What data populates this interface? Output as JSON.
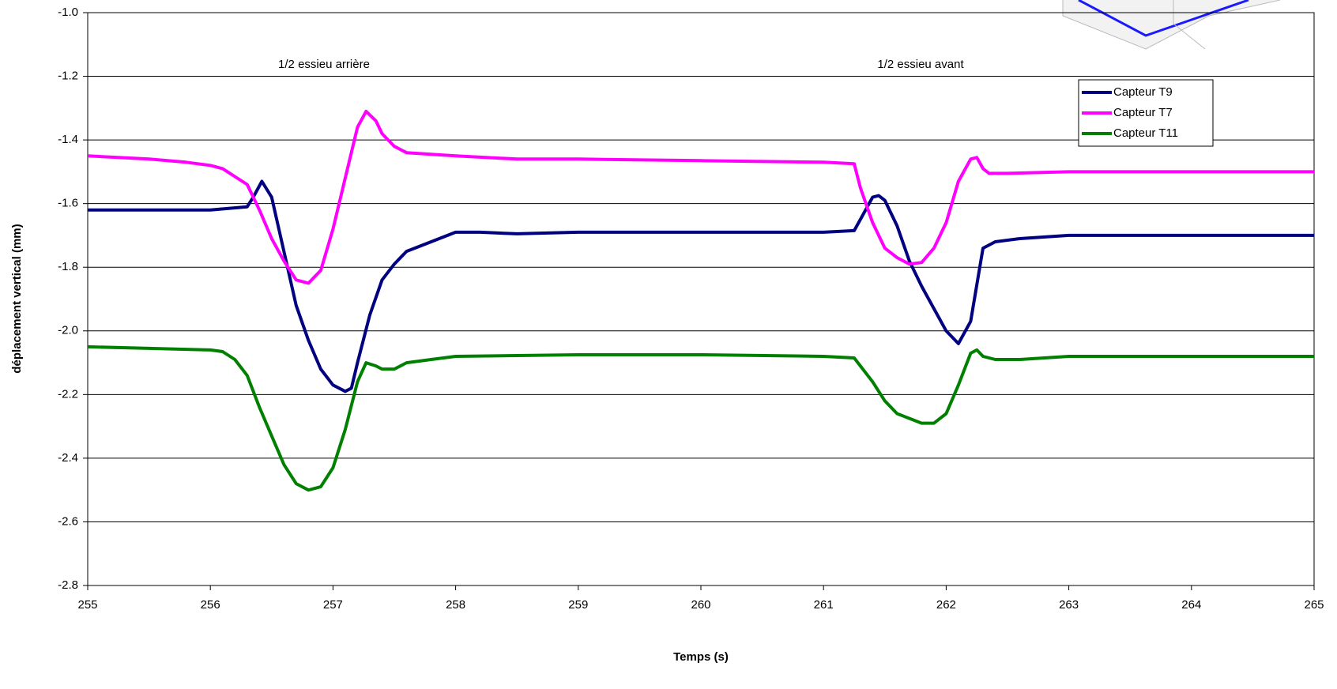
{
  "chart_data": {
    "type": "line",
    "xlabel": "Temps (s)",
    "ylabel": "déplacement vertical (mm)",
    "annotations": [
      "1/2 essieu arrière",
      "1/2 essieu avant"
    ],
    "xlim": [
      255,
      265
    ],
    "xticks": [
      255,
      256,
      257,
      258,
      259,
      260,
      261,
      262,
      263,
      264,
      265
    ],
    "ylim": [
      -2.8,
      -1.0
    ],
    "yticks": [
      {
        "value": -2.8,
        "label": "-2.8"
      },
      -2.6,
      -2.4,
      -2.2,
      {
        "value": -2.0,
        "label": "-2.0"
      },
      -1.8,
      -1.6,
      -1.4,
      -1.2,
      {
        "value": -1.0,
        "label": "-1.0"
      }
    ],
    "grid": true,
    "legend": "upper right",
    "series": [
      {
        "name": "Capteur T9",
        "color": "#000080",
        "x": [
          255,
          255.5,
          256,
          256.3,
          256.35,
          256.42,
          256.5,
          256.6,
          256.7,
          256.8,
          256.9,
          257.0,
          257.1,
          257.15,
          257.2,
          257.3,
          257.4,
          257.5,
          257.6,
          257.8,
          258.0,
          258.2,
          258.5,
          259,
          260,
          261,
          261.25,
          261.3,
          261.4,
          261.45,
          261.5,
          261.6,
          261.7,
          261.8,
          261.9,
          262.0,
          262.1,
          262.2,
          262.3,
          262.4,
          262.6,
          263,
          264,
          265
        ],
        "values": [
          -1.62,
          -1.62,
          -1.62,
          -1.61,
          -1.58,
          -1.53,
          -1.58,
          -1.75,
          -1.92,
          -2.03,
          -2.12,
          -2.17,
          -2.19,
          -2.18,
          -2.1,
          -1.95,
          -1.84,
          -1.79,
          -1.75,
          -1.72,
          -1.69,
          -1.69,
          -1.695,
          -1.69,
          -1.69,
          -1.69,
          -1.685,
          -1.65,
          -1.58,
          -1.575,
          -1.59,
          -1.67,
          -1.78,
          -1.86,
          -1.93,
          -2.0,
          -2.04,
          -1.97,
          -1.74,
          -1.72,
          -1.71,
          -1.7,
          -1.7,
          -1.7
        ]
      },
      {
        "name": "Capteur T7",
        "color": "#ff00ff",
        "x": [
          255,
          255.5,
          255.8,
          256,
          256.1,
          256.3,
          256.4,
          256.5,
          256.6,
          256.7,
          256.8,
          256.9,
          257.0,
          257.1,
          257.2,
          257.27,
          257.35,
          257.4,
          257.5,
          257.6,
          258,
          258.5,
          259,
          260,
          261,
          261.25,
          261.3,
          261.4,
          261.5,
          261.6,
          261.7,
          261.8,
          261.9,
          262.0,
          262.1,
          262.2,
          262.25,
          262.3,
          262.35,
          262.5,
          263,
          264,
          265
        ],
        "values": [
          -1.45,
          -1.46,
          -1.47,
          -1.48,
          -1.49,
          -1.54,
          -1.62,
          -1.71,
          -1.78,
          -1.84,
          -1.85,
          -1.81,
          -1.68,
          -1.52,
          -1.36,
          -1.31,
          -1.34,
          -1.38,
          -1.42,
          -1.44,
          -1.45,
          -1.46,
          -1.46,
          -1.465,
          -1.47,
          -1.475,
          -1.55,
          -1.66,
          -1.74,
          -1.77,
          -1.79,
          -1.785,
          -1.74,
          -1.66,
          -1.53,
          -1.46,
          -1.455,
          -1.49,
          -1.505,
          -1.505,
          -1.5,
          -1.5,
          -1.5
        ]
      },
      {
        "name": "Capteur T11",
        "color": "#008000",
        "x": [
          255,
          255.5,
          256,
          256.1,
          256.2,
          256.3,
          256.4,
          256.5,
          256.6,
          256.7,
          256.8,
          256.9,
          257.0,
          257.1,
          257.2,
          257.27,
          257.35,
          257.4,
          257.5,
          257.6,
          257.8,
          258,
          259,
          260,
          261,
          261.25,
          261.3,
          261.4,
          261.5,
          261.6,
          261.8,
          261.9,
          262.0,
          262.1,
          262.2,
          262.25,
          262.3,
          262.4,
          262.6,
          263,
          264,
          265
        ],
        "values": [
          -2.05,
          -2.055,
          -2.06,
          -2.065,
          -2.09,
          -2.14,
          -2.24,
          -2.33,
          -2.42,
          -2.48,
          -2.5,
          -2.49,
          -2.43,
          -2.31,
          -2.16,
          -2.1,
          -2.11,
          -2.12,
          -2.12,
          -2.1,
          -2.09,
          -2.08,
          -2.075,
          -2.075,
          -2.08,
          -2.085,
          -2.11,
          -2.16,
          -2.22,
          -2.26,
          -2.29,
          -2.29,
          -2.26,
          -2.17,
          -2.07,
          -2.06,
          -2.08,
          -2.09,
          -2.09,
          -2.08,
          -2.08,
          -2.08
        ]
      }
    ]
  }
}
